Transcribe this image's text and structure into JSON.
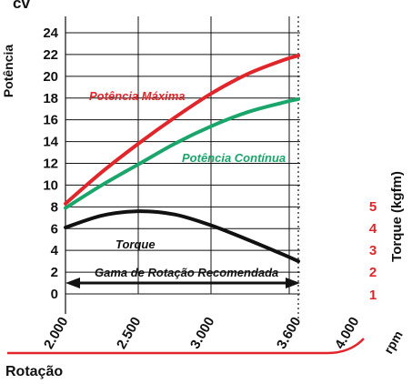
{
  "chart_data": {
    "type": "line",
    "x": [
      2000,
      2500,
      3000,
      3600
    ],
    "x_tick_labels": [
      "2.000",
      "2.500",
      "3.000",
      "3.600",
      "4.000"
    ],
    "x_tick_values": [
      2000,
      2500,
      3000,
      3600,
      4000
    ],
    "x_unit": "rpm",
    "xlabel": "Rotação",
    "xlim": [
      2000,
      4000
    ],
    "ylabel": "Potência",
    "y_unit": "cv",
    "ylim": [
      0,
      24
    ],
    "y_ticks": [
      0,
      2,
      4,
      6,
      8,
      10,
      12,
      14,
      16,
      18,
      20,
      22,
      24
    ],
    "y2label": "Torque (kgfm)",
    "y2_ticks": [
      1,
      2,
      3,
      4,
      5
    ],
    "grid": true,
    "series": [
      {
        "name": "Potência Máxima",
        "color": "#e0262b",
        "axis": "left",
        "x": [
          2000,
          2250,
          2500,
          2750,
          3000,
          3250,
          3500,
          3600
        ],
        "values": [
          8.3,
          11.2,
          13.8,
          16.2,
          18.4,
          20.2,
          21.5,
          21.9
        ]
      },
      {
        "name": "Potência Contínua",
        "color": "#1aa66a",
        "axis": "left",
        "x": [
          2000,
          2250,
          2500,
          2750,
          3000,
          3250,
          3500,
          3600
        ],
        "values": [
          7.9,
          10.0,
          11.9,
          13.8,
          15.4,
          16.7,
          17.6,
          17.9
        ]
      },
      {
        "name": "Torque",
        "color": "#111111",
        "axis": "left",
        "x": [
          2000,
          2250,
          2500,
          2750,
          3000,
          3250,
          3500,
          3600
        ],
        "values": [
          6.1,
          7.2,
          7.6,
          7.3,
          6.3,
          5.0,
          3.6,
          3.0
        ]
      }
    ],
    "annotations": [
      {
        "text": "Gama de Rotação Recomendada",
        "x_range": [
          2000,
          3600
        ]
      }
    ],
    "dotted_marker_x": 3600
  },
  "labels": {
    "cv": "cv",
    "ylabel": "Potência",
    "y2label": "Torque (kgfm)",
    "rpm": "rpm",
    "xlabel": "Rotação",
    "potencia_maxima": "Potência Máxima",
    "potencia_continua": "Potência Contínua",
    "torque": "Torque",
    "gama": "Gama de Rotação Recomendada"
  },
  "colors": {
    "red": "#e0262b",
    "green": "#1aa66a",
    "black": "#111111",
    "grid": "#111111"
  }
}
